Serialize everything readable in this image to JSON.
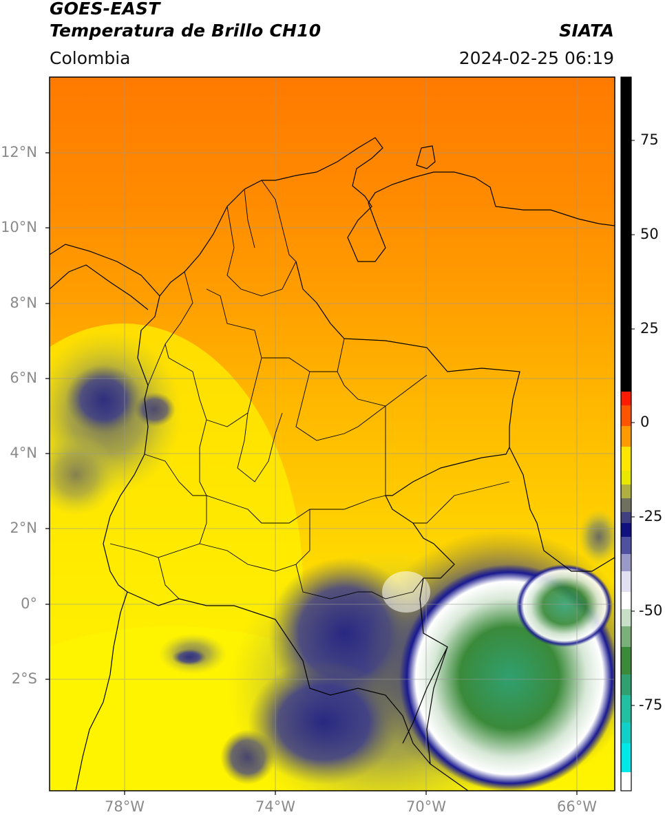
{
  "header": {
    "satellite": "GOES-EAST",
    "product": "Temperatura de Brillo CH10",
    "region": "Colombia",
    "source": "SIATA",
    "datetime": "2024-02-25 06:19"
  },
  "map": {
    "lon_range": [
      -80,
      -65
    ],
    "lat_range": [
      -5,
      14
    ],
    "lat_ticks": [
      {
        "value": 12,
        "label": "12°N"
      },
      {
        "value": 10,
        "label": "10°N"
      },
      {
        "value": 8,
        "label": "8°N"
      },
      {
        "value": 6,
        "label": "6°N"
      },
      {
        "value": 4,
        "label": "4°N"
      },
      {
        "value": 2,
        "label": "2°N"
      },
      {
        "value": 0,
        "label": "0°"
      },
      {
        "value": -2,
        "label": "2°S"
      }
    ],
    "lon_ticks": [
      {
        "value": -78,
        "label": "78°W"
      },
      {
        "value": -74,
        "label": "74°W"
      },
      {
        "value": -70,
        "label": "70°W"
      },
      {
        "value": -66,
        "label": "66°W"
      }
    ]
  },
  "colorbar": {
    "range": [
      -95,
      90
    ],
    "ticks": [
      {
        "value": 75,
        "label": "75"
      },
      {
        "value": 50,
        "label": "50"
      },
      {
        "value": 25,
        "label": "25"
      },
      {
        "value": 0,
        "label": "0"
      },
      {
        "value": -25,
        "label": "-25"
      },
      {
        "value": -50,
        "label": "-50"
      },
      {
        "value": -75,
        "label": "-75"
      }
    ],
    "colors": {
      "black": "#000000",
      "red": "#ff1a00",
      "orange": "#ff8c00",
      "yellow": "#ffff00",
      "olive": "#8a8a3a",
      "navy": "#101080",
      "white": "#ffffff",
      "green": "#3a8a3a",
      "teal": "#20c0a0",
      "cyan": "#00e8e8"
    }
  }
}
